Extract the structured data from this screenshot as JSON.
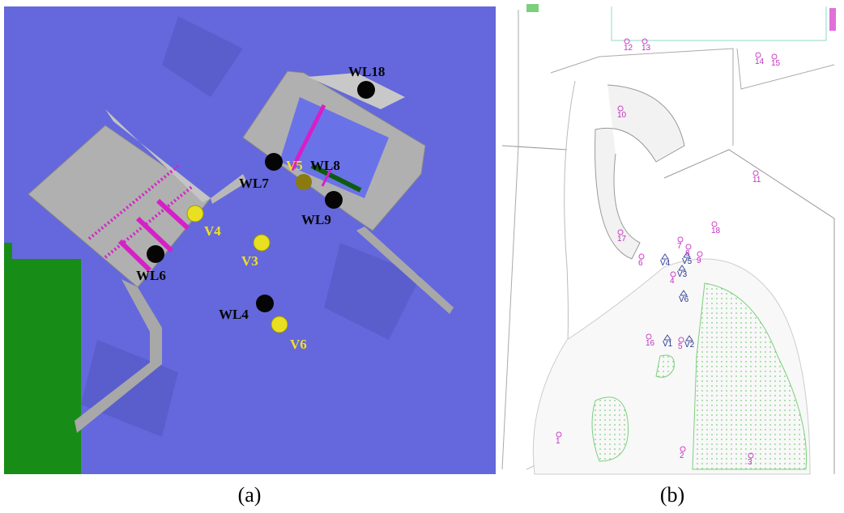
{
  "panels": [
    {
      "caption": "(a)",
      "labels": [
        "WL18",
        "WL7",
        "V5",
        "WL8",
        "WL9",
        "V4",
        "V3",
        "WL6",
        "WL4",
        "V6"
      ]
    },
    {
      "caption": "(b)",
      "labels": [
        "12",
        "13",
        "14",
        "15",
        "10",
        "11",
        "18",
        "17",
        "7",
        "8",
        "9",
        "6",
        "V4",
        "V5",
        "V3",
        "4",
        "V6",
        "16",
        "V1",
        "5",
        "V2",
        "1",
        "2",
        "3"
      ]
    }
  ]
}
